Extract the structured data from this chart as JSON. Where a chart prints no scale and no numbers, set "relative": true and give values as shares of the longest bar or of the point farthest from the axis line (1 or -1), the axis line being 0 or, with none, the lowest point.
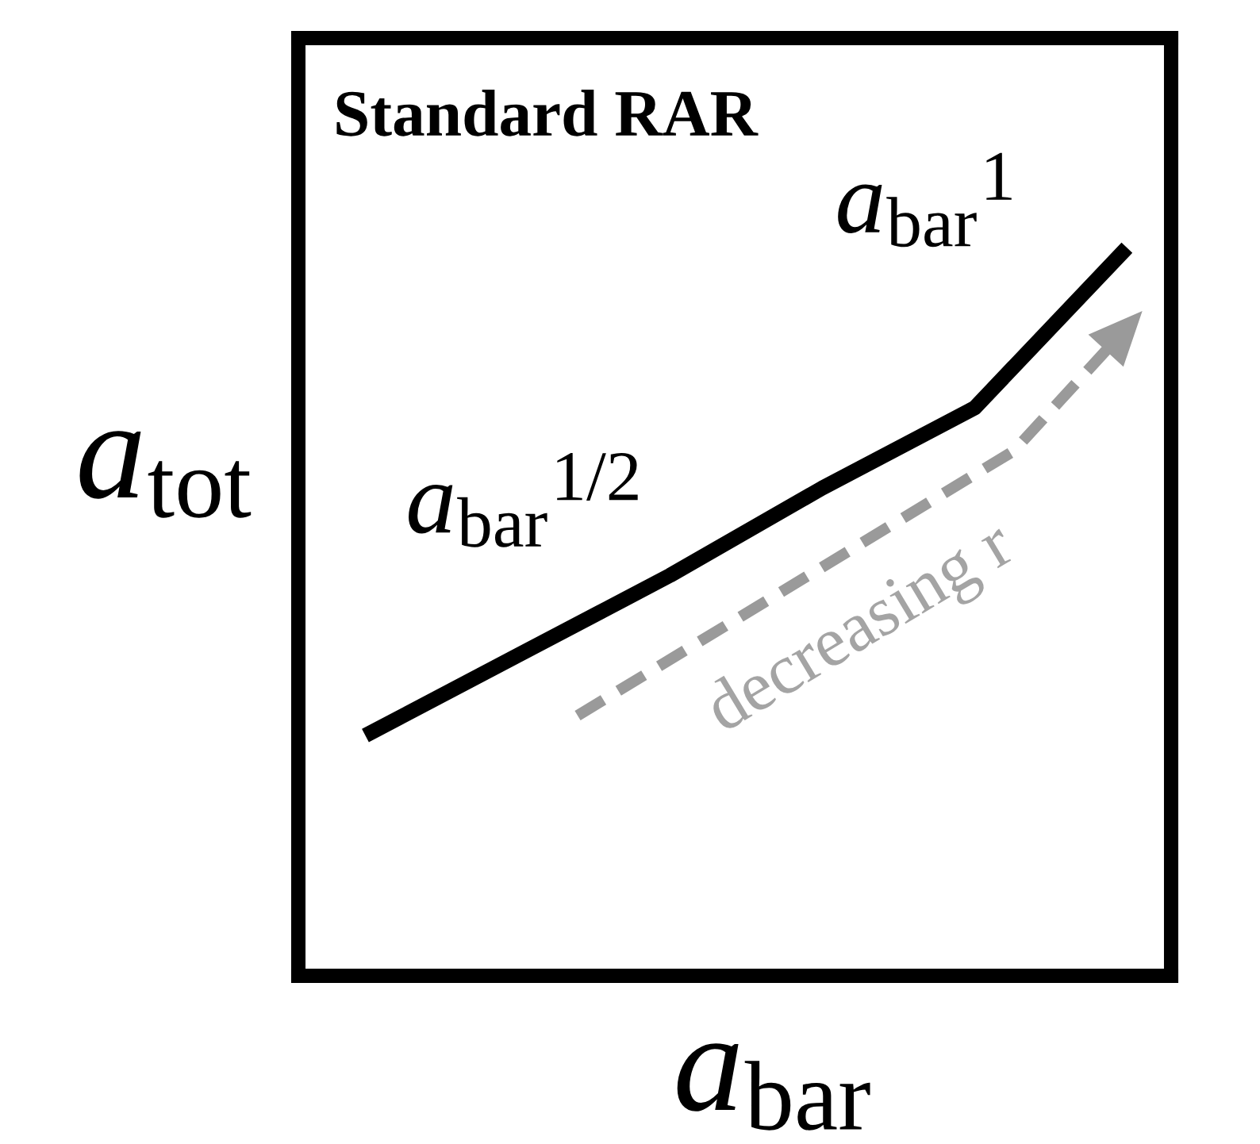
{
  "chart_data": {
    "type": "line",
    "title": "Standard RAR",
    "xlabel": "a$_{bar}$",
    "ylabel": "a$_{tot}$",
    "categories": [
      null,
      null,
      null,
      null,
      null,
      null
    ],
    "series": [
      {
        "color": "#000000",
        "values": [
          0.33,
          0.44,
          0.55,
          0.67,
          0.78,
          1.0
        ]
      }
    ],
    "relative": true,
    "annotations": [
      "a$_{bar}$$^{1/2}$",
      "a$_{bar}$$^{1}$",
      "decreasing r"
    ]
  }
}
